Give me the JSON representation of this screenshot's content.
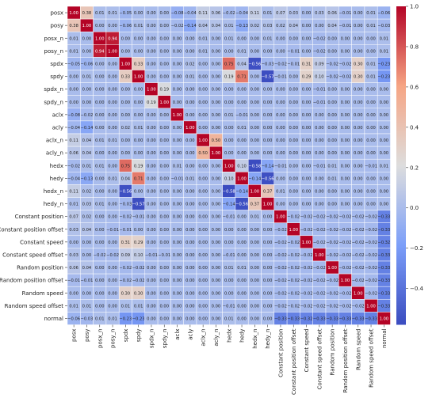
{
  "chart_data": {
    "type": "heatmap",
    "title": "",
    "xlabel": "",
    "ylabel": "",
    "labels": [
      "posx",
      "posy",
      "posx_n",
      "posy_n",
      "spdx",
      "spdy",
      "spdx_n",
      "spdy_n",
      "aclx",
      "acly",
      "aclx_n",
      "acly_n",
      "hedx",
      "hedy",
      "hedx_n",
      "hedy_n",
      "Constant position",
      "Constant position offset",
      "Constant speed",
      "Constant speed offset",
      "Random position",
      "Random position offset",
      "Random speed",
      "Random speed offset",
      "normal"
    ],
    "matrix": [
      [
        1.0,
        0.38,
        0.01,
        0.01,
        -0.05,
        0.0,
        0.0,
        0.0,
        -0.08,
        -0.04,
        0.11,
        0.06,
        -0.02,
        -0.04,
        0.11,
        0.01,
        0.07,
        0.03,
        0.0,
        0.03,
        0.06,
        -0.01,
        0.0,
        0.01,
        -0.06
      ],
      [
        0.38,
        1.0,
        0.0,
        0.0,
        -0.06,
        0.01,
        0.0,
        0.0,
        -0.02,
        -0.14,
        0.04,
        0.04,
        0.01,
        -0.13,
        0.02,
        0.03,
        0.02,
        0.04,
        0.0,
        0.0,
        0.04,
        -0.01,
        0.0,
        0.01,
        -0.03
      ],
      [
        0.01,
        0.0,
        1.0,
        0.94,
        0.0,
        0.0,
        0.0,
        0.0,
        0.0,
        0.0,
        0.01,
        0.0,
        0.01,
        0.0,
        0.0,
        0.01,
        0.0,
        0.0,
        0.0,
        -0.02,
        0.0,
        0.0,
        0.0,
        0.0,
        0.01
      ],
      [
        0.01,
        0.0,
        0.94,
        1.0,
        0.0,
        0.0,
        0.0,
        0.0,
        0.0,
        0.0,
        0.01,
        0.0,
        0.0,
        0.01,
        0.0,
        0.0,
        0.0,
        -0.01,
        0.0,
        -0.02,
        0.0,
        0.0,
        0.0,
        0.0,
        0.01
      ],
      [
        -0.05,
        -0.06,
        0.0,
        0.0,
        1.0,
        0.33,
        0.0,
        0.0,
        0.0,
        0.02,
        0.0,
        0.0,
        0.75,
        0.04,
        -0.56,
        -0.03,
        -0.02,
        -0.01,
        0.31,
        0.09,
        -0.02,
        -0.02,
        0.3,
        0.01,
        -0.23
      ],
      [
        0.0,
        0.01,
        0.0,
        0.0,
        0.33,
        1.0,
        0.0,
        0.0,
        0.0,
        0.01,
        0.0,
        0.0,
        0.19,
        0.71,
        0.0,
        -0.57,
        -0.01,
        0.0,
        0.29,
        0.1,
        -0.02,
        -0.02,
        0.3,
        0.01,
        -0.23
      ],
      [
        0.0,
        0.0,
        0.0,
        0.0,
        0.0,
        0.0,
        1.0,
        0.19,
        0.0,
        0.0,
        0.0,
        0.0,
        0.0,
        0.0,
        0.0,
        0.0,
        0.0,
        0.0,
        0.0,
        -0.01,
        0.0,
        0.0,
        0.0,
        0.0,
        0.0
      ],
      [
        0.0,
        0.0,
        0.0,
        0.0,
        0.0,
        0.0,
        0.19,
        1.0,
        0.0,
        0.0,
        0.0,
        0.0,
        0.0,
        0.0,
        0.0,
        0.0,
        0.0,
        0.0,
        0.0,
        -0.01,
        0.0,
        0.0,
        0.0,
        0.0,
        0.0
      ],
      [
        -0.08,
        -0.02,
        0.0,
        0.0,
        0.0,
        0.0,
        0.0,
        0.0,
        1.0,
        0.0,
        0.0,
        0.0,
        0.01,
        -0.01,
        0.0,
        0.0,
        0.0,
        0.0,
        0.0,
        0.0,
        0.0,
        0.0,
        0.0,
        0.0,
        0.0
      ],
      [
        -0.04,
        -0.14,
        0.0,
        0.0,
        0.02,
        0.01,
        0.0,
        0.0,
        0.0,
        1.0,
        0.0,
        0.0,
        0.0,
        0.01,
        0.0,
        0.0,
        0.0,
        0.0,
        0.0,
        0.0,
        0.0,
        0.0,
        0.0,
        0.0,
        0.0
      ],
      [
        0.11,
        0.04,
        0.01,
        0.01,
        0.0,
        0.0,
        0.0,
        0.0,
        0.0,
        0.0,
        1.0,
        0.5,
        0.0,
        0.0,
        0.0,
        0.0,
        0.0,
        0.0,
        0.0,
        0.0,
        0.0,
        0.0,
        0.0,
        0.0,
        0.0
      ],
      [
        0.06,
        0.04,
        0.0,
        0.0,
        0.0,
        0.0,
        0.0,
        0.0,
        0.0,
        0.0,
        0.5,
        1.0,
        0.0,
        0.0,
        0.0,
        0.0,
        0.0,
        0.0,
        0.0,
        0.0,
        0.0,
        0.0,
        0.0,
        0.0,
        0.0
      ],
      [
        -0.02,
        0.01,
        0.01,
        0.0,
        0.75,
        0.19,
        0.0,
        0.0,
        0.01,
        0.0,
        0.0,
        0.0,
        1.0,
        0.1,
        -0.58,
        -0.14,
        -0.01,
        0.0,
        0.0,
        -0.01,
        0.01,
        0.0,
        0.0,
        -0.01,
        0.01
      ],
      [
        -0.04,
        -0.13,
        0.0,
        0.01,
        0.04,
        0.71,
        0.0,
        0.0,
        -0.01,
        0.01,
        0.0,
        0.0,
        0.1,
        1.0,
        -0.14,
        -0.56,
        0.0,
        0.0,
        0.0,
        0.0,
        0.01,
        0.0,
        0.0,
        0.0,
        0.0
      ],
      [
        0.11,
        0.02,
        0.0,
        0.0,
        -0.56,
        0.0,
        0.0,
        0.0,
        0.0,
        0.0,
        0.0,
        0.0,
        -0.58,
        -0.14,
        1.0,
        0.37,
        0.01,
        0.0,
        0.0,
        0.0,
        0.0,
        0.0,
        0.0,
        0.0,
        0.0
      ],
      [
        0.01,
        0.03,
        0.01,
        0.0,
        -0.03,
        -0.57,
        0.0,
        0.0,
        0.0,
        0.0,
        0.0,
        0.0,
        -0.14,
        -0.56,
        0.37,
        1.0,
        0.0,
        0.0,
        0.0,
        0.0,
        0.0,
        0.0,
        0.0,
        0.0,
        0.0
      ],
      [
        0.07,
        0.02,
        0.0,
        0.0,
        -0.02,
        -0.01,
        0.0,
        0.0,
        0.0,
        0.0,
        0.0,
        0.0,
        -0.01,
        0.0,
        0.01,
        0.0,
        1.0,
        -0.02,
        -0.02,
        -0.02,
        -0.02,
        -0.02,
        -0.02,
        -0.02,
        -0.33
      ],
      [
        0.03,
        0.04,
        0.0,
        -0.01,
        -0.01,
        0.0,
        0.0,
        0.0,
        0.0,
        0.0,
        0.0,
        0.0,
        0.0,
        0.0,
        0.0,
        0.0,
        -0.02,
        1.0,
        -0.02,
        -0.02,
        -0.02,
        -0.02,
        -0.02,
        -0.02,
        -0.33
      ],
      [
        0.0,
        0.0,
        0.0,
        0.0,
        0.31,
        0.29,
        0.0,
        0.0,
        0.0,
        0.0,
        0.0,
        0.0,
        0.0,
        0.0,
        0.0,
        0.0,
        -0.02,
        -0.02,
        1.0,
        -0.02,
        -0.02,
        -0.02,
        -0.02,
        -0.02,
        -0.32
      ],
      [
        0.03,
        0.0,
        -0.02,
        -0.02,
        0.09,
        0.1,
        -0.01,
        -0.01,
        0.0,
        0.0,
        0.0,
        0.0,
        -0.01,
        0.0,
        0.0,
        0.0,
        -0.02,
        -0.02,
        -0.02,
        1.0,
        -0.02,
        -0.02,
        -0.02,
        -0.02,
        -0.33
      ],
      [
        0.06,
        0.04,
        0.0,
        0.0,
        -0.02,
        -0.02,
        0.0,
        0.0,
        0.0,
        0.0,
        0.0,
        0.0,
        0.01,
        0.01,
        0.0,
        0.0,
        -0.02,
        -0.02,
        -0.02,
        -0.02,
        1.0,
        -0.02,
        -0.02,
        -0.02,
        -0.33
      ],
      [
        -0.01,
        -0.01,
        0.0,
        0.0,
        -0.02,
        -0.02,
        0.0,
        0.0,
        0.0,
        0.0,
        0.0,
        0.0,
        0.0,
        0.0,
        0.0,
        0.0,
        -0.02,
        -0.02,
        -0.02,
        -0.02,
        -0.02,
        1.0,
        -0.02,
        -0.02,
        -0.33
      ],
      [
        0.0,
        0.0,
        0.0,
        0.0,
        0.3,
        0.3,
        0.0,
        0.0,
        0.0,
        0.0,
        0.0,
        0.0,
        0.0,
        0.0,
        0.0,
        0.0,
        -0.02,
        -0.02,
        -0.02,
        -0.02,
        -0.02,
        -0.02,
        1.0,
        -0.02,
        -0.33
      ],
      [
        0.01,
        0.01,
        0.0,
        0.0,
        0.01,
        0.01,
        0.0,
        0.0,
        0.0,
        0.0,
        0.0,
        0.0,
        -0.01,
        0.0,
        0.0,
        0.0,
        -0.02,
        -0.02,
        -0.02,
        -0.02,
        -0.02,
        -0.02,
        -0.02,
        1.0,
        -0.33
      ],
      [
        -0.06,
        -0.03,
        0.01,
        0.01,
        -0.23,
        -0.23,
        0.0,
        0.0,
        0.0,
        0.0,
        0.0,
        0.0,
        0.01,
        0.0,
        0.0,
        0.0,
        -0.33,
        -0.33,
        -0.32,
        -0.33,
        -0.33,
        -0.33,
        -0.33,
        -0.33,
        1.0
      ]
    ],
    "colorbar": {
      "min": -0.58,
      "max": 1.0,
      "ticks": [
        1.0,
        0.8,
        0.6,
        0.4,
        0.2,
        0.0,
        -0.2,
        -0.4
      ]
    },
    "colormap": "coolwarm",
    "annotate": true,
    "grid": true
  }
}
